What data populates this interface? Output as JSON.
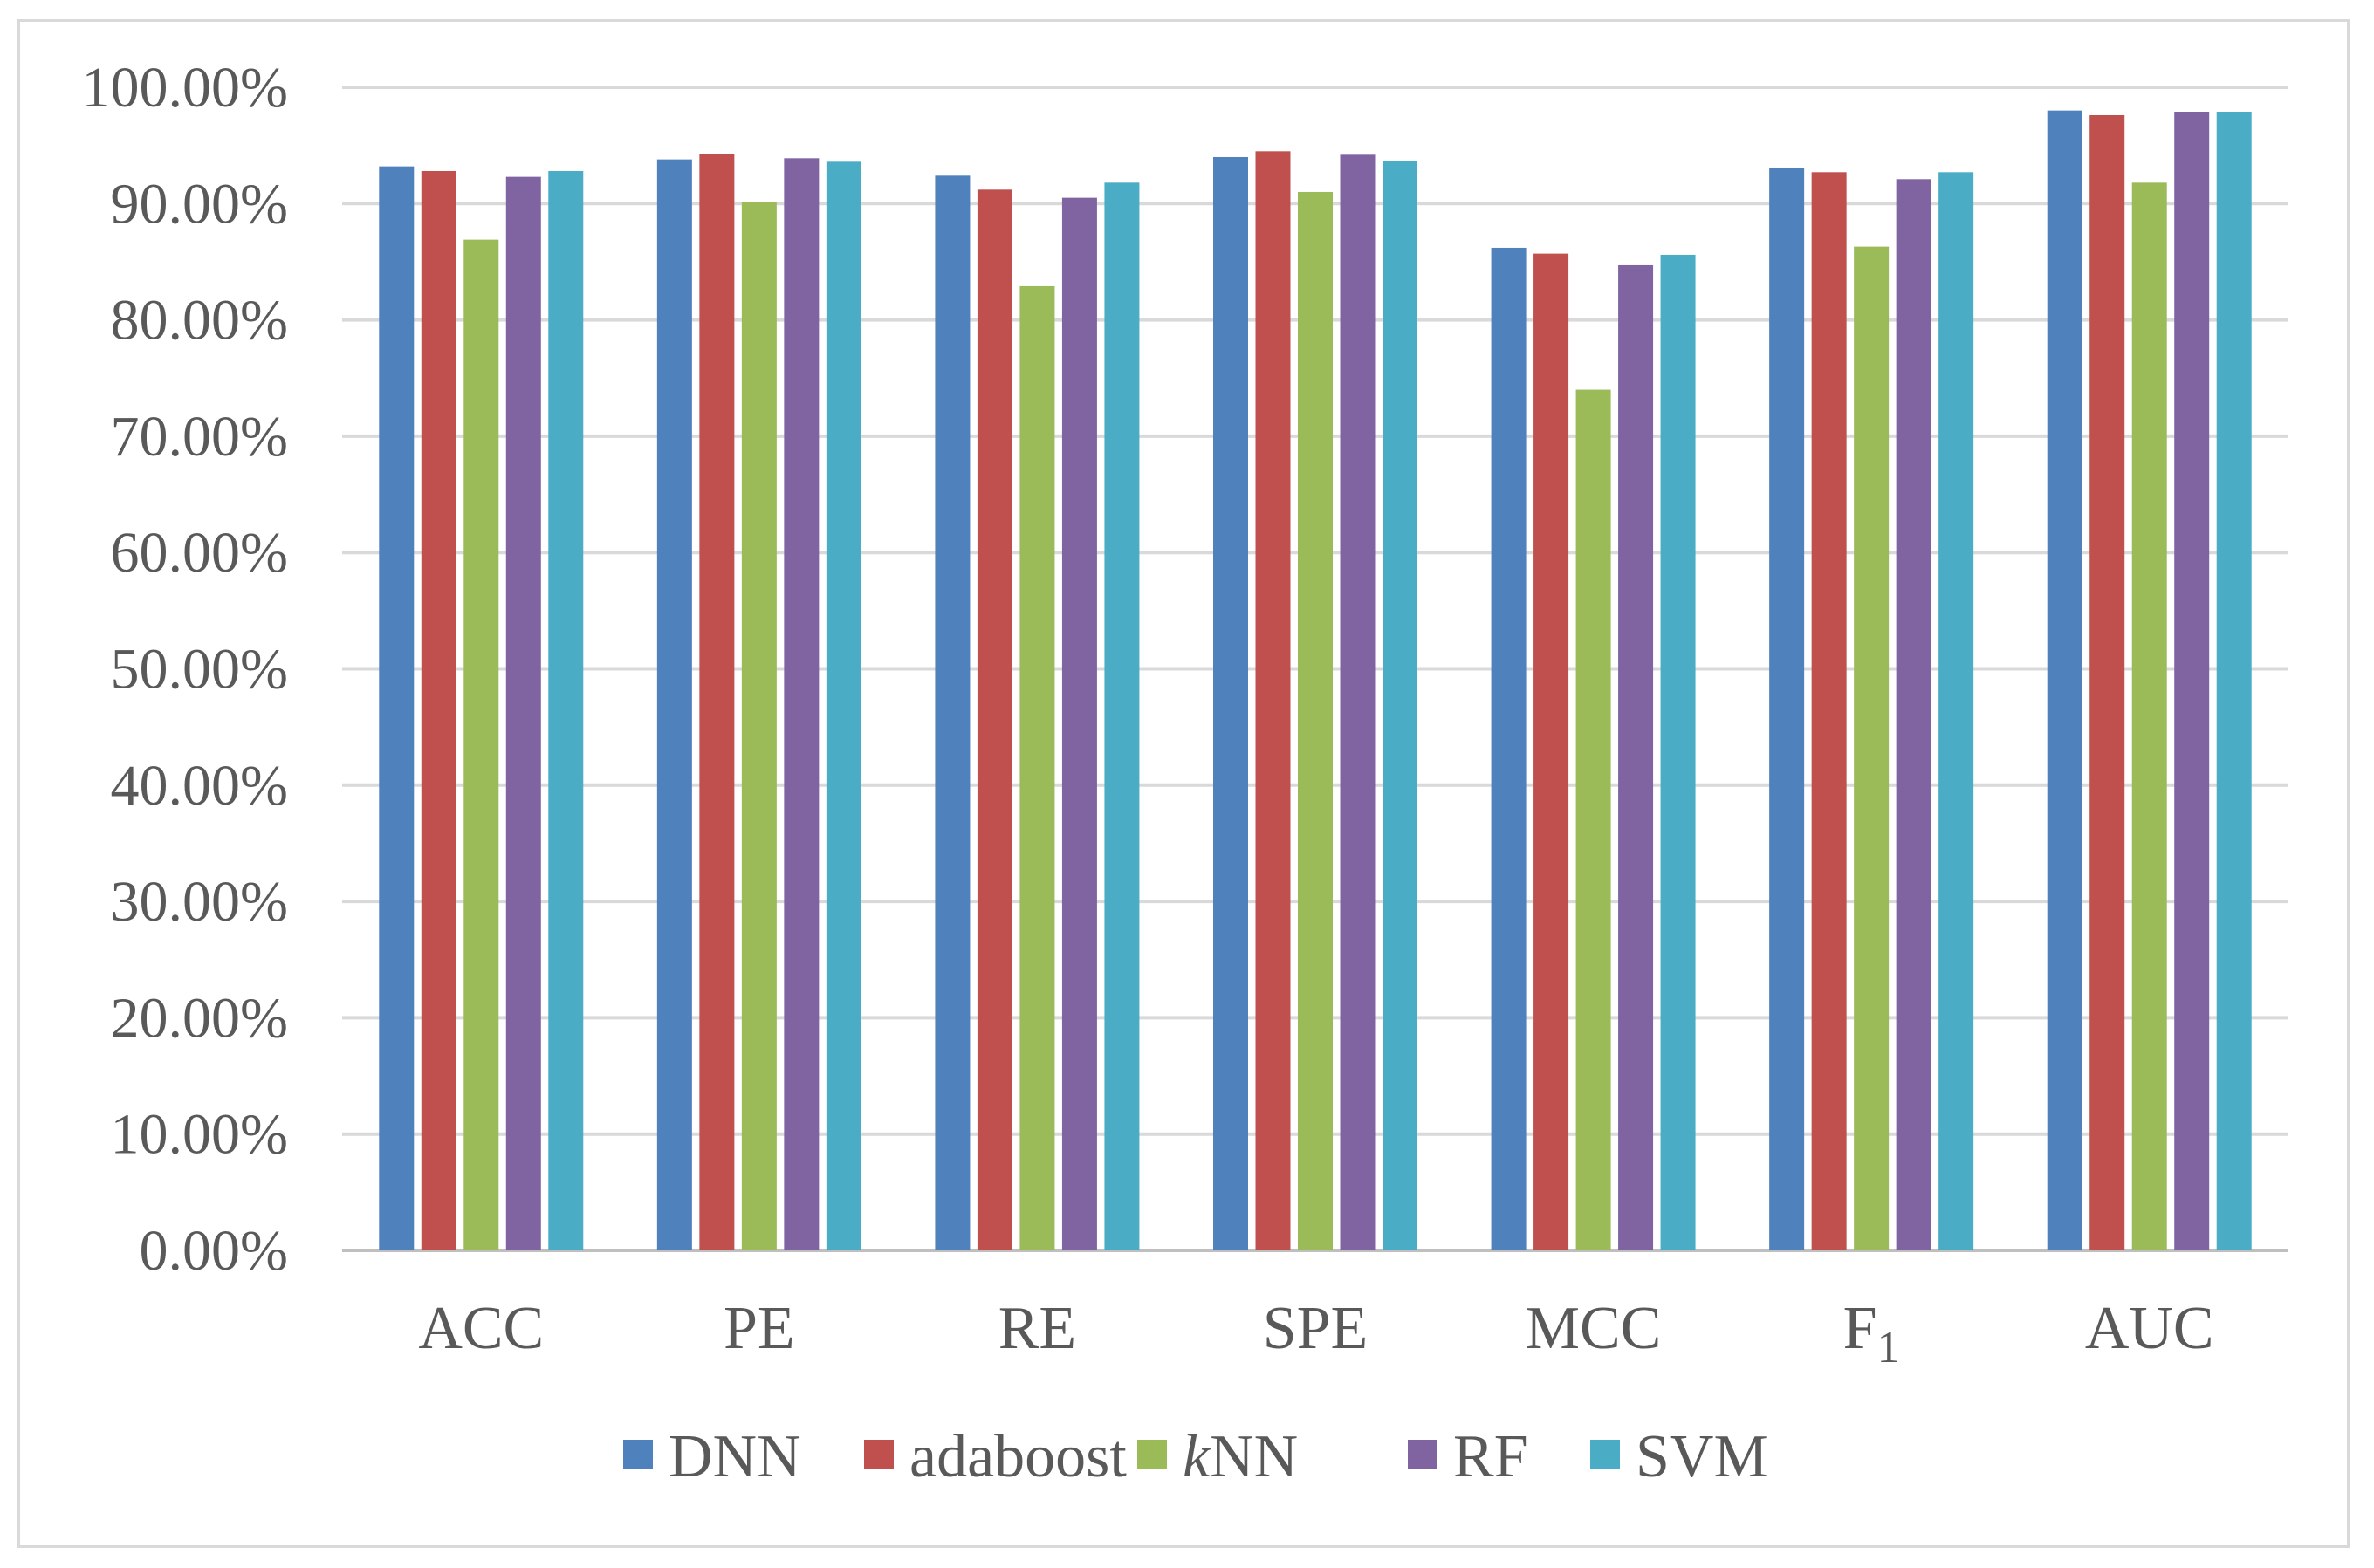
{
  "chart_data": {
    "type": "bar",
    "title": "",
    "xlabel": "",
    "ylabel": "",
    "ylim": [
      0,
      1
    ],
    "y_ticks": [
      0,
      0.1,
      0.2,
      0.3,
      0.4,
      0.5,
      0.6,
      0.7,
      0.8,
      0.9,
      1.0
    ],
    "y_tick_labels": [
      "0.00%",
      "10.00%",
      "20.00%",
      "30.00%",
      "40.00%",
      "50.00%",
      "60.00%",
      "70.00%",
      "80.00%",
      "90.00%",
      "100.00%"
    ],
    "grid": true,
    "legend_position": "bottom",
    "categories": [
      "ACC",
      "PE",
      "RE",
      "SPE",
      "MCC",
      "F1",
      "AUC"
    ],
    "category_labels": [
      {
        "text": "ACC"
      },
      {
        "text": "PE"
      },
      {
        "text": "RE"
      },
      {
        "text": "SPE"
      },
      {
        "text": "MCC"
      },
      {
        "text": "F",
        "subscript": "1"
      },
      {
        "text": "AUC"
      }
    ],
    "series": [
      {
        "name": "DNN",
        "prefix": "",
        "italic_prefix": "",
        "color": "#4F81BD",
        "values": [
          0.932,
          0.938,
          0.924,
          0.94,
          0.862,
          0.931,
          0.98
        ]
      },
      {
        "name": "adaboost",
        "prefix": "",
        "italic_prefix": "",
        "color": "#C0504D",
        "values": [
          0.928,
          0.943,
          0.912,
          0.945,
          0.857,
          0.927,
          0.976
        ]
      },
      {
        "name": "kNN",
        "italic_prefix": "k",
        "rest": "NN",
        "color": "#9BBB59",
        "values": [
          0.869,
          0.901,
          0.829,
          0.91,
          0.74,
          0.863,
          0.918
        ]
      },
      {
        "name": "RF",
        "prefix": "",
        "italic_prefix": "",
        "color": "#8064A2",
        "values": [
          0.923,
          0.939,
          0.905,
          0.942,
          0.847,
          0.921,
          0.979
        ]
      },
      {
        "name": "SVM",
        "prefix": "",
        "italic_prefix": "",
        "color": "#4BACC6",
        "values": [
          0.928,
          0.936,
          0.918,
          0.937,
          0.856,
          0.927,
          0.979
        ]
      }
    ],
    "gridline_color": "#d9d9d9",
    "axis_line_color": "#bfbfbf"
  }
}
